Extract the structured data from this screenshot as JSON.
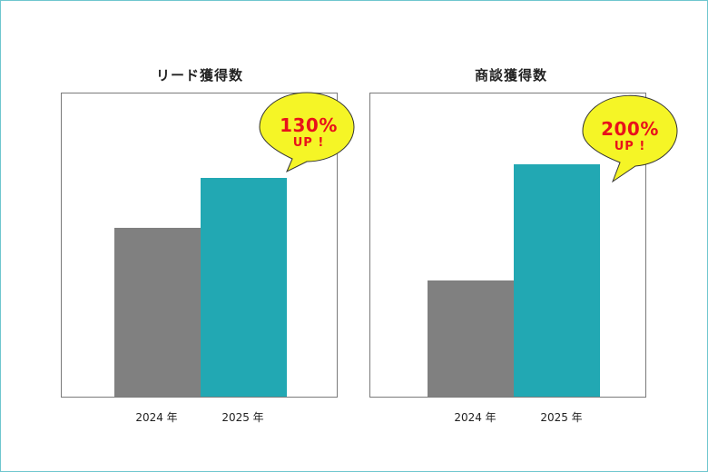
{
  "chart_data": [
    {
      "type": "bar",
      "title": "リード獲得数",
      "categories": [
        "2024 年",
        "2025 年"
      ],
      "values": [
        100,
        130
      ],
      "ylim": [
        0,
        180
      ],
      "colors": [
        "#808080",
        "#22a8b3"
      ],
      "callout": {
        "value": "130%",
        "sub": "UP !",
        "fill": "#f5f526",
        "text_color": "#e8121a"
      }
    },
    {
      "type": "bar",
      "title": "商談獲得数",
      "categories": [
        "2024 年",
        "2025 年"
      ],
      "values": [
        100,
        200
      ],
      "ylim": [
        0,
        261
      ],
      "colors": [
        "#808080",
        "#22a8b3"
      ],
      "callout": {
        "value": "200%",
        "sub": "UP !",
        "fill": "#f5f526",
        "text_color": "#e8121a"
      }
    }
  ]
}
